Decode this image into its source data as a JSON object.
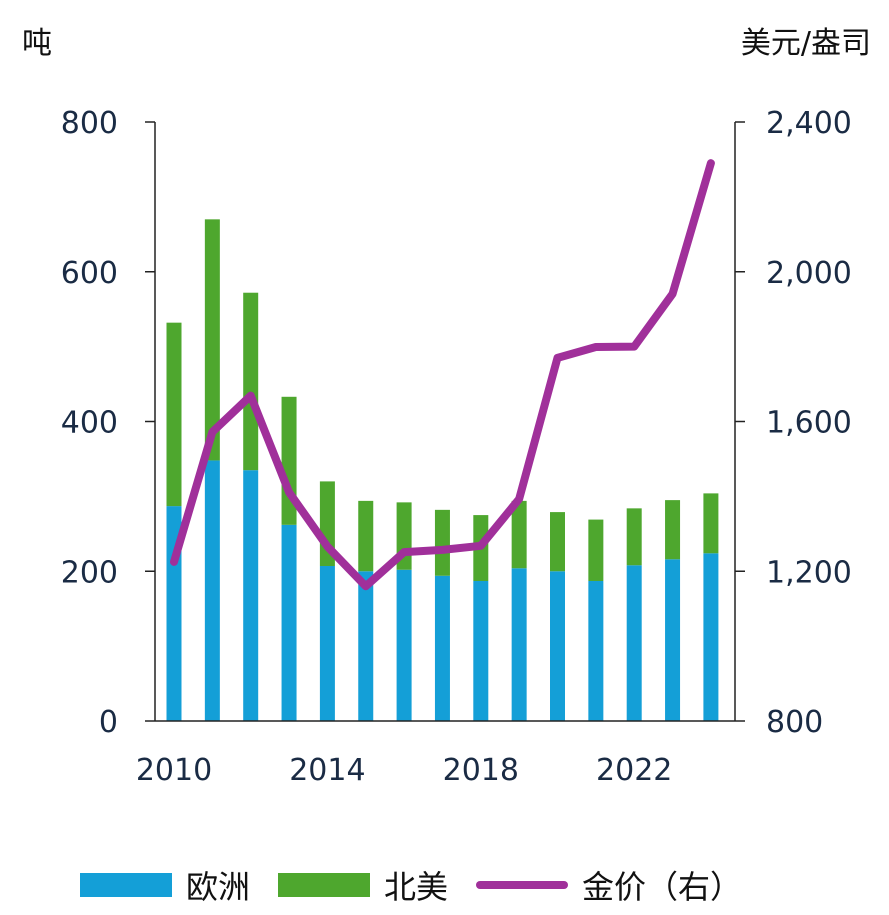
{
  "chart_data": {
    "type": "bar",
    "stacked": true,
    "x": [
      2010,
      2011,
      2012,
      2013,
      2014,
      2015,
      2016,
      2017,
      2018,
      2019,
      2020,
      2021,
      2022,
      2023,
      2024
    ],
    "x_ticks": [
      "2010",
      "2014",
      "2018",
      "2022"
    ],
    "ylabel": "吨",
    "y2label": "美元/盎司",
    "ylim": [
      0,
      800
    ],
    "y_ticks": [
      "0",
      "200",
      "400",
      "600",
      "800"
    ],
    "y2lim": [
      800,
      2400
    ],
    "y2_ticks": [
      "800",
      "1,200",
      "1,600",
      "2,000",
      "2,400"
    ],
    "series": [
      {
        "name": "欧洲",
        "kind": "bar",
        "axis": "left",
        "color": "#149fd7",
        "values": [
          287,
          348,
          335,
          262,
          207,
          200,
          202,
          194,
          187,
          204,
          200,
          187,
          208,
          216,
          224
        ]
      },
      {
        "name": "北美",
        "kind": "bar",
        "axis": "left",
        "color": "#4ea72e",
        "values": [
          245,
          322,
          237,
          171,
          113,
          94,
          90,
          88,
          88,
          90,
          79,
          82,
          76,
          79,
          80
        ]
      },
      {
        "name": "金价（右）",
        "kind": "line",
        "axis": "right",
        "color": "#a0309a",
        "values": [
          1225,
          1572,
          1669,
          1411,
          1266,
          1160,
          1251,
          1257,
          1268,
          1393,
          1770,
          1799,
          1800,
          1941,
          2290
        ]
      }
    ],
    "grid": false,
    "legend_position": "bottom"
  }
}
